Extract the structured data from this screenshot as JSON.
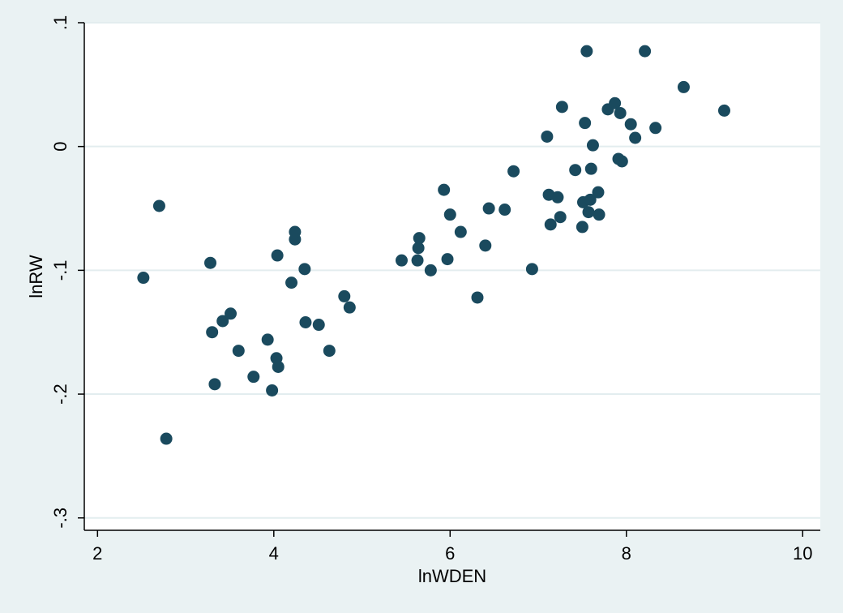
{
  "colors": {
    "page_background": "#eaf2f3",
    "plot_background": "#ffffff",
    "gridline": "#e3edef",
    "marker": "#1a4a5e",
    "axis": "#000000"
  },
  "chart_data": {
    "type": "scatter",
    "title": "",
    "xlabel": "lnWDEN",
    "ylabel": "lnRW",
    "xlim": [
      1.85,
      10.2
    ],
    "ylim": [
      -0.31,
      0.1
    ],
    "x_ticks": [
      2,
      4,
      6,
      8,
      10
    ],
    "x_tick_labels": [
      "2",
      "4",
      "6",
      "8",
      "10"
    ],
    "y_ticks": [
      -0.3,
      -0.2,
      -0.1,
      0,
      0.1
    ],
    "y_tick_labels": [
      "-.3",
      "-.2",
      "-.1",
      "0",
      ".1"
    ],
    "grid": "horizontal",
    "legend": "none",
    "marker": "filled-circle",
    "series": [
      {
        "points": [
          [
            2.52,
            -0.106
          ],
          [
            2.7,
            -0.048
          ],
          [
            2.78,
            -0.236
          ],
          [
            3.28,
            -0.094
          ],
          [
            3.3,
            -0.15
          ],
          [
            3.33,
            -0.192
          ],
          [
            3.42,
            -0.141
          ],
          [
            3.51,
            -0.135
          ],
          [
            3.6,
            -0.165
          ],
          [
            3.77,
            -0.186
          ],
          [
            3.93,
            -0.156
          ],
          [
            3.98,
            -0.197
          ],
          [
            4.03,
            -0.171
          ],
          [
            4.04,
            -0.088
          ],
          [
            4.05,
            -0.178
          ],
          [
            4.2,
            -0.11
          ],
          [
            4.24,
            -0.075
          ],
          [
            4.24,
            -0.069
          ],
          [
            4.35,
            -0.099
          ],
          [
            4.36,
            -0.142
          ],
          [
            4.51,
            -0.144
          ],
          [
            4.63,
            -0.165
          ],
          [
            4.8,
            -0.121
          ],
          [
            4.86,
            -0.13
          ],
          [
            5.45,
            -0.092
          ],
          [
            5.63,
            -0.092
          ],
          [
            5.64,
            -0.082
          ],
          [
            5.65,
            -0.074
          ],
          [
            5.78,
            -0.1
          ],
          [
            5.93,
            -0.035
          ],
          [
            5.97,
            -0.091
          ],
          [
            6.0,
            -0.055
          ],
          [
            6.12,
            -0.069
          ],
          [
            6.31,
            -0.122
          ],
          [
            6.4,
            -0.08
          ],
          [
            6.44,
            -0.05
          ],
          [
            6.62,
            -0.051
          ],
          [
            6.72,
            -0.02
          ],
          [
            6.93,
            -0.099
          ],
          [
            7.1,
            0.008
          ],
          [
            7.12,
            -0.039
          ],
          [
            7.14,
            -0.063
          ],
          [
            7.22,
            -0.041
          ],
          [
            7.25,
            -0.057
          ],
          [
            7.27,
            0.032
          ],
          [
            7.42,
            -0.019
          ],
          [
            7.5,
            -0.065
          ],
          [
            7.51,
            -0.045
          ],
          [
            7.53,
            0.019
          ],
          [
            7.55,
            0.077
          ],
          [
            7.57,
            -0.053
          ],
          [
            7.59,
            -0.043
          ],
          [
            7.6,
            -0.018
          ],
          [
            7.62,
            0.001
          ],
          [
            7.68,
            -0.037
          ],
          [
            7.69,
            -0.055
          ],
          [
            7.79,
            0.03
          ],
          [
            7.87,
            0.035
          ],
          [
            7.91,
            -0.01
          ],
          [
            7.93,
            0.027
          ],
          [
            7.95,
            -0.012
          ],
          [
            8.05,
            0.018
          ],
          [
            8.1,
            0.007
          ],
          [
            8.21,
            0.077
          ],
          [
            8.33,
            0.015
          ],
          [
            8.65,
            0.048
          ],
          [
            9.11,
            0.029
          ]
        ]
      }
    ]
  }
}
